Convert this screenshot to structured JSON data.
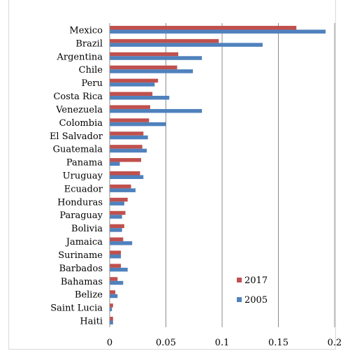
{
  "chart_data": {
    "type": "bar",
    "orientation": "horizontal",
    "title": "",
    "xlabel": "",
    "ylabel": "",
    "xlim": [
      0,
      0.2
    ],
    "x_ticks": [
      0,
      0.05,
      0.1,
      0.15,
      0.2
    ],
    "x_tick_labels": [
      "0",
      "0.05",
      "0.1",
      "0.15",
      "0.2"
    ],
    "grid": "vertical",
    "legend_position": "bottom-right",
    "categories": [
      "Mexico",
      "Brazil",
      "Argentina",
      "Chile",
      "Peru",
      "Costa Rica",
      "Venezuela",
      "Colombia",
      "El Salvador",
      "Guatemala",
      "Panama",
      "Uruguay",
      "Ecuador",
      "Honduras",
      "Paraguay",
      "Bolivia",
      "Jamaica",
      "Suriname",
      "Barbados",
      "Bahamas",
      "Belize",
      "Saint Lucia",
      "Haiti"
    ],
    "series": [
      {
        "name": "2017",
        "color": "#c0504d",
        "values": [
          0.166,
          0.097,
          0.061,
          0.06,
          0.043,
          0.038,
          0.036,
          0.035,
          0.03,
          0.029,
          0.028,
          0.027,
          0.019,
          0.016,
          0.014,
          0.013,
          0.012,
          0.01,
          0.01,
          0.007,
          0.005,
          0.003,
          0.003
        ]
      },
      {
        "name": "2005",
        "color": "#4f81bd",
        "values": [
          0.192,
          0.136,
          0.082,
          0.074,
          0.04,
          0.053,
          0.082,
          0.05,
          0.034,
          0.033,
          0.009,
          0.03,
          0.023,
          0.013,
          0.011,
          0.011,
          0.02,
          0.01,
          0.016,
          0.012,
          0.007,
          0.002,
          0.003
        ]
      }
    ]
  }
}
